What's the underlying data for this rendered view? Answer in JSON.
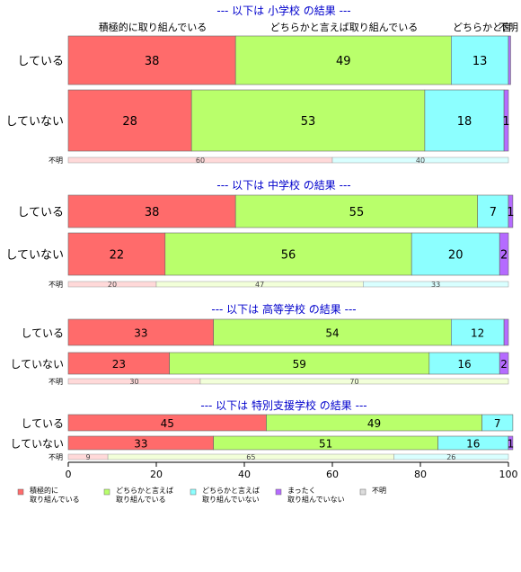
{
  "chart_data": {
    "type": "bar",
    "orientation": "horizontal",
    "stacked": true,
    "xlim": [
      0,
      100
    ],
    "x_ticks": [
      0,
      20,
      40,
      60,
      80,
      100
    ],
    "top_category_labels": [
      "積極的に取り組んでいる",
      "どちらかと言えば取り組んでいる",
      "どちらかと言",
      "不明"
    ],
    "legend": {
      "placement": "bottom",
      "items": [
        {
          "label1": "積極的に",
          "label2": "取り組んでいる",
          "color": "#ff6b6b"
        },
        {
          "label1": "どちらかと言えば",
          "label2": "取り組んでいる",
          "color": "#b9ff6b"
        },
        {
          "label1": "どちらかと言えば",
          "label2": "取り組んでいない",
          "color": "#8cffff"
        },
        {
          "label1": "まったく",
          "label2": "取り組んでいない",
          "color": "#b56bff"
        },
        {
          "label1": "不明",
          "label2": "",
          "color": "#dddddd"
        }
      ]
    },
    "panels": [
      {
        "title": "--- 以下は 小学校 の結果 ---",
        "rows": [
          {
            "label": "している",
            "values": [
              38,
              49,
              13,
              0.5
            ],
            "labels": [
              "38",
              "49",
              "13",
              ""
            ]
          },
          {
            "label": "していない",
            "values": [
              28,
              53,
              18,
              1
            ],
            "labels": [
              "28",
              "53",
              "18",
              "1"
            ]
          }
        ],
        "fumei": {
          "label": "不明",
          "values": [
            60,
            0,
            40,
            0
          ],
          "labels": [
            "60",
            "",
            "40",
            ""
          ]
        }
      },
      {
        "title": "--- 以下は 中学校 の結果 ---",
        "rows": [
          {
            "label": "している",
            "values": [
              38,
              55,
              7,
              1
            ],
            "labels": [
              "38",
              "55",
              "7",
              "1"
            ]
          },
          {
            "label": "していない",
            "values": [
              22,
              56,
              20,
              2
            ],
            "labels": [
              "22",
              "56",
              "20",
              "2"
            ]
          }
        ],
        "fumei": {
          "label": "不明",
          "values": [
            20,
            47,
            33,
            0
          ],
          "labels": [
            "20",
            "47",
            "33",
            ""
          ]
        }
      },
      {
        "title": "--- 以下は 高等学校 の結果 ---",
        "rows": [
          {
            "label": "している",
            "values": [
              33,
              54,
              12,
              1
            ],
            "labels": [
              "33",
              "54",
              "12",
              ""
            ]
          },
          {
            "label": "していない",
            "values": [
              23,
              59,
              16,
              2
            ],
            "labels": [
              "23",
              "59",
              "16",
              "2"
            ]
          }
        ],
        "fumei": {
          "label": "不明",
          "values": [
            30,
            70,
            0,
            0
          ],
          "labels": [
            "30",
            "70",
            "",
            ""
          ]
        }
      },
      {
        "title": "--- 以下は 特別支援学校 の結果 ---",
        "rows": [
          {
            "label": "している",
            "values": [
              45,
              49,
              7,
              0
            ],
            "labels": [
              "45",
              "49",
              "7",
              ""
            ]
          },
          {
            "label": "していない",
            "values": [
              33,
              51,
              16,
              1
            ],
            "labels": [
              "33",
              "51",
              "16",
              "1"
            ]
          }
        ],
        "fumei": {
          "label": "不明",
          "values": [
            9,
            65,
            26,
            0
          ],
          "labels": [
            "9",
            "65",
            "26",
            ""
          ]
        }
      }
    ]
  }
}
